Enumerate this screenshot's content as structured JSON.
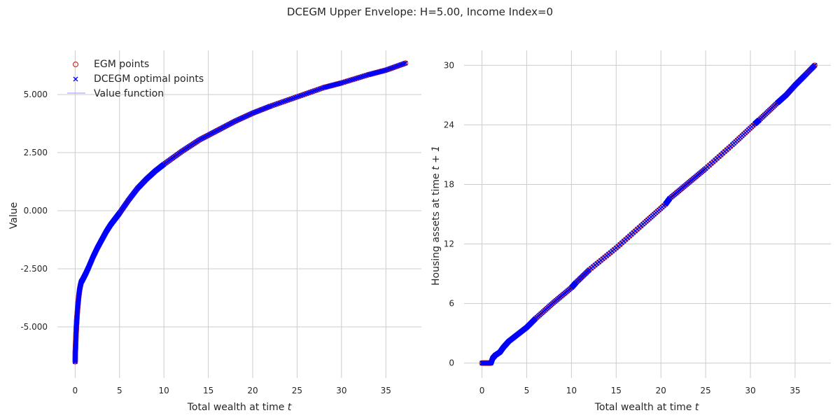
{
  "figure": {
    "title": "DCEGM Upper Envelope: H=5.00, Income Index=0"
  },
  "colors": {
    "egm": "#c0392b",
    "dcegm": "#0000ff",
    "value_line": "#aaaaff",
    "grid": "#cccccc"
  },
  "chart_data": [
    {
      "type": "scatter",
      "title": "",
      "xlabel_text": "Total wealth at time ",
      "xlabel_var": "t",
      "ylabel": "Value",
      "xlim": [
        -2,
        39
      ],
      "ylim": [
        -7.2,
        6.9
      ],
      "xticks": [
        0,
        5,
        10,
        15,
        20,
        25,
        30,
        35
      ],
      "xtick_labels": [
        "0",
        "5",
        "10",
        "15",
        "20",
        "25",
        "30",
        "35"
      ],
      "yticks": [
        -5,
        -2.5,
        0,
        2.5,
        5
      ],
      "ytick_labels": [
        "-5.000",
        "-2.500",
        "0.000",
        "2.500",
        "5.000"
      ],
      "grid": true,
      "legend": {
        "position": "top-left",
        "entries": [
          "EGM points",
          "DCEGM optimal points",
          "Value function"
        ]
      },
      "series": [
        {
          "name": "EGM points",
          "marker": "circle",
          "x": [
            0,
            0.02,
            0.05,
            0.1,
            0.15,
            0.2,
            0.3,
            0.4,
            0.5,
            0.6,
            0.7,
            0.8,
            1.0,
            1.2,
            1.5,
            2.0,
            2.5,
            3.0,
            3.5,
            4.0,
            4.5,
            5.0,
            6.0,
            7.0,
            8.0,
            9.0,
            10.0,
            12.0,
            14.0,
            16.0,
            18.0,
            20.0,
            22.0,
            25.0,
            28.0,
            30.0,
            33.0,
            35.0,
            37.2
          ],
          "y": [
            -6.5,
            -6.1,
            -5.8,
            -5.3,
            -4.9,
            -4.6,
            -4.1,
            -3.7,
            -3.4,
            -3.2,
            -3.05,
            -3.0,
            -2.85,
            -2.7,
            -2.45,
            -2.0,
            -1.6,
            -1.25,
            -0.9,
            -0.6,
            -0.35,
            -0.1,
            0.45,
            0.95,
            1.35,
            1.7,
            2.0,
            2.55,
            3.05,
            3.45,
            3.85,
            4.2,
            4.5,
            4.9,
            5.3,
            5.5,
            5.85,
            6.05,
            6.35
          ]
        },
        {
          "name": "DCEGM optimal points",
          "marker": "x",
          "x": [
            0,
            0.02,
            0.05,
            0.1,
            0.15,
            0.2,
            0.3,
            0.4,
            0.5,
            0.6,
            0.7,
            0.8,
            1.0,
            1.2,
            1.5,
            2.0,
            2.5,
            3.0,
            3.5,
            4.0,
            4.5,
            5.0,
            6.0,
            7.0,
            8.0,
            9.0,
            10.0,
            12.0,
            14.0,
            16.0,
            18.0,
            20.0,
            22.0,
            25.0,
            28.0,
            30.0,
            33.0,
            35.0,
            37.2
          ],
          "y": [
            -6.5,
            -6.1,
            -5.8,
            -5.3,
            -4.9,
            -4.6,
            -4.1,
            -3.7,
            -3.4,
            -3.2,
            -3.05,
            -3.0,
            -2.85,
            -2.7,
            -2.45,
            -2.0,
            -1.6,
            -1.25,
            -0.9,
            -0.6,
            -0.35,
            -0.1,
            0.45,
            0.95,
            1.35,
            1.7,
            2.0,
            2.55,
            3.05,
            3.45,
            3.85,
            4.2,
            4.5,
            4.9,
            5.3,
            5.5,
            5.85,
            6.05,
            6.35
          ]
        },
        {
          "name": "Value function",
          "marker": "line",
          "x": [
            0,
            0.1,
            0.2,
            0.4,
            0.6,
            0.8,
            1.0,
            1.5,
            2.0,
            3.0,
            4.0,
            5.0,
            7.0,
            10.0,
            14.0,
            18.0,
            22.0,
            26.0,
            30.0,
            34.0,
            37.2
          ],
          "y": [
            -6.5,
            -5.3,
            -4.6,
            -3.7,
            -3.2,
            -3.0,
            -2.85,
            -2.45,
            -2.0,
            -1.25,
            -0.6,
            -0.1,
            0.95,
            2.0,
            3.05,
            3.85,
            4.5,
            5.05,
            5.5,
            5.95,
            6.35
          ]
        }
      ]
    },
    {
      "type": "scatter",
      "title": "",
      "xlabel_text": "Total wealth at time ",
      "xlabel_var": "t",
      "ylabel_text": "Housing assets at time ",
      "ylabel_var": "t + 1",
      "xlim": [
        -2,
        39
      ],
      "ylim": [
        -1.5,
        31.5
      ],
      "xticks": [
        0,
        5,
        10,
        15,
        20,
        25,
        30,
        35
      ],
      "xtick_labels": [
        "0",
        "5",
        "10",
        "15",
        "20",
        "25",
        "30",
        "35"
      ],
      "yticks": [
        0,
        6,
        12,
        18,
        24,
        30
      ],
      "ytick_labels": [
        "0",
        "6",
        "12",
        "18",
        "24",
        "30"
      ],
      "grid": true,
      "series": [
        {
          "name": "EGM points",
          "marker": "circle",
          "x": [
            0,
            0.5,
            1.0,
            1.2,
            1.5,
            2.0,
            2.4,
            3.0,
            4.0,
            5.0,
            6.0,
            8.0,
            10.0,
            10.5,
            12.0,
            15.0,
            18.0,
            20.5,
            21.0,
            23.0,
            25.0,
            28.0,
            30.5,
            31.0,
            33.0,
            34.0,
            35.0,
            36.0,
            37.2
          ],
          "y": [
            0,
            0,
            0,
            0.5,
            0.8,
            1.1,
            1.6,
            2.2,
            2.9,
            3.6,
            4.5,
            6.1,
            7.6,
            8.1,
            9.4,
            11.6,
            14.0,
            16.0,
            16.6,
            18.1,
            19.6,
            22.0,
            24.1,
            24.5,
            26.2,
            27.0,
            28.0,
            28.9,
            30.0
          ]
        },
        {
          "name": "DCEGM optimal points",
          "marker": "x",
          "x": [
            0,
            0.5,
            1.0,
            1.2,
            1.5,
            2.0,
            2.4,
            3.0,
            4.0,
            5.0,
            6.0,
            8.0,
            10.0,
            10.5,
            12.0,
            15.0,
            18.0,
            20.5,
            21.0,
            23.0,
            25.0,
            28.0,
            30.5,
            31.0,
            33.0,
            34.0,
            35.0,
            36.0,
            37.2
          ],
          "y": [
            0,
            0,
            0,
            0.5,
            0.8,
            1.1,
            1.6,
            2.2,
            2.9,
            3.6,
            4.5,
            6.1,
            7.6,
            8.1,
            9.4,
            11.6,
            14.0,
            16.0,
            16.6,
            18.1,
            19.6,
            22.0,
            24.1,
            24.5,
            26.2,
            27.0,
            28.0,
            28.9,
            30.0
          ]
        }
      ]
    }
  ]
}
